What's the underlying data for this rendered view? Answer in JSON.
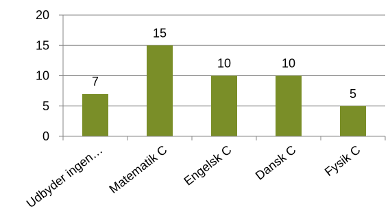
{
  "chart_data": {
    "type": "bar",
    "categories": [
      "Udbyder ingen…",
      "Matematik C",
      "Engelsk C",
      "Dansk C",
      "Fysik C"
    ],
    "values": [
      7,
      15,
      10,
      10,
      5
    ],
    "data_labels": [
      "7",
      "15",
      "10",
      "10",
      "5"
    ],
    "y_ticks": [
      0,
      5,
      10,
      15,
      20
    ],
    "ylim": [
      0,
      20
    ],
    "grid": true,
    "bar_color": "#7a8e28",
    "axis_color": "#868686"
  }
}
